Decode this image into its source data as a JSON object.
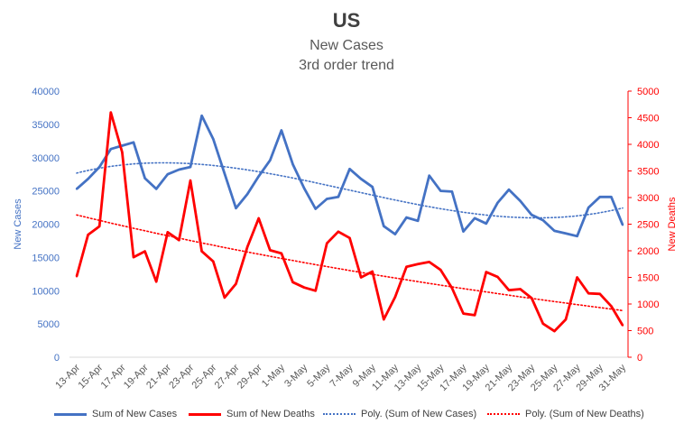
{
  "chart_data": {
    "type": "line",
    "title": "US",
    "subtitle_1": "New Cases",
    "subtitle_2": "3rd order trend",
    "y_left_label": "New Cases",
    "y_right_label": "New Deaths",
    "y_left_lim": [
      0,
      40000
    ],
    "y_right_lim": [
      0,
      5000
    ],
    "y_left_ticks": [
      "0",
      "5000",
      "10000",
      "15000",
      "20000",
      "25000",
      "30000",
      "35000",
      "40000"
    ],
    "y_right_ticks": [
      "0",
      "500",
      "1000",
      "1500",
      "2000",
      "2500",
      "3000",
      "3500",
      "4000",
      "4500",
      "5000"
    ],
    "x_tick_labels": [
      "13-Apr",
      "15-Apr",
      "17-Apr",
      "19-Apr",
      "21-Apr",
      "23-Apr",
      "25-Apr",
      "27-Apr",
      "29-Apr",
      "1-May",
      "3-May",
      "5-May",
      "7-May",
      "9-May",
      "11-May",
      "13-May",
      "15-May",
      "17-May",
      "19-May",
      "21-May",
      "23-May",
      "25-May",
      "27-May",
      "29-May",
      "31-May"
    ],
    "grid": false,
    "legend_position": "bottom",
    "series": [
      {
        "name": "Sum of New Cases",
        "axis": "left",
        "color": "#4472C4",
        "style": "solid",
        "values": [
          25300,
          26800,
          28600,
          31300,
          31800,
          32300,
          26900,
          25300,
          27500,
          28200,
          28600,
          36300,
          32800,
          27600,
          22400,
          24500,
          27200,
          29600,
          34100,
          29000,
          25400,
          22300,
          23800,
          24100,
          28300,
          26800,
          25600,
          19700,
          18500,
          21000,
          20500,
          27300,
          25000,
          24900,
          18900,
          20900,
          20100,
          23200,
          25200,
          23500,
          21400,
          20600,
          19000,
          18600,
          18200,
          22500,
          24100,
          24100,
          19900
        ]
      },
      {
        "name": "Sum of New Deaths",
        "axis": "right",
        "color": "#FF0000",
        "style": "solid",
        "values": [
          1520,
          2300,
          2460,
          4600,
          3850,
          1880,
          1990,
          1420,
          2350,
          2200,
          3320,
          1990,
          1800,
          1120,
          1380,
          2070,
          2610,
          2010,
          1950,
          1410,
          1310,
          1250,
          2140,
          2360,
          2240,
          1500,
          1610,
          710,
          1130,
          1700,
          1750,
          1790,
          1640,
          1300,
          820,
          790,
          1600,
          1510,
          1260,
          1280,
          1110,
          630,
          490,
          710,
          1500,
          1200,
          1190,
          960,
          600
        ]
      },
      {
        "name": "Poly. (Sum of New Cases)",
        "axis": "left",
        "color": "#4472C4",
        "style": "dotted",
        "trend_of": "Sum of New Cases"
      },
      {
        "name": "Poly. (Sum of New Deaths)",
        "axis": "right",
        "color": "#FF0000",
        "style": "dotted",
        "trend_of": "Sum of New Deaths"
      }
    ]
  }
}
